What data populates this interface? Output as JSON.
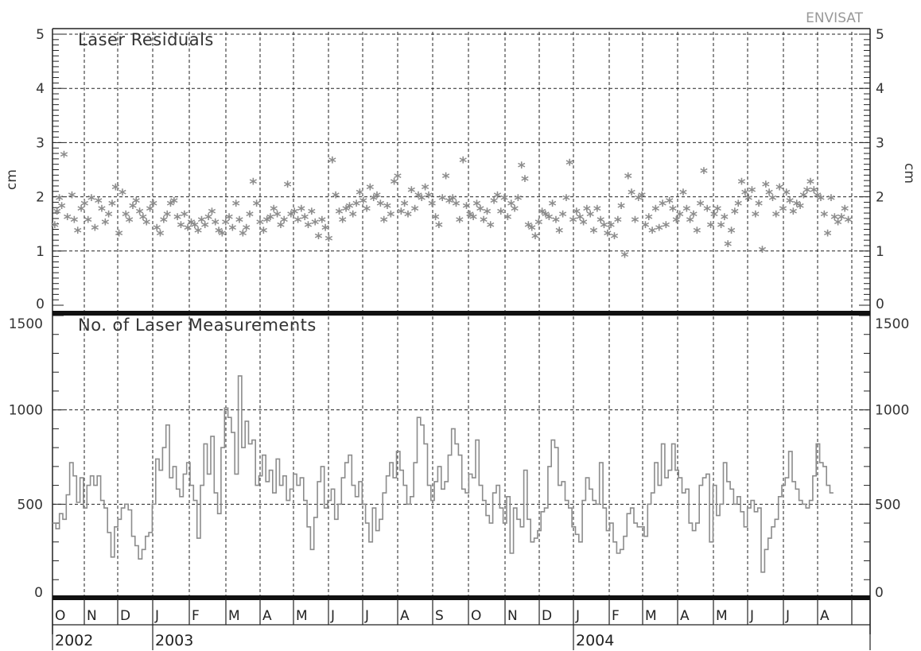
{
  "satellite_label": "ENVISAT",
  "chart_data": [
    {
      "type": "scatter",
      "title": "Laser Residuals",
      "ylabel": "cm",
      "ylim": [
        0,
        5
      ],
      "yticks": [
        "0",
        "1",
        "2",
        "3",
        "4",
        "5"
      ],
      "marker": "asterisk",
      "color": "#8c8c8c",
      "grid": true,
      "x_range_days": [
        0,
        713
      ],
      "points": [
        [
          2,
          1.45
        ],
        [
          4,
          1.7
        ],
        [
          6,
          1.95
        ],
        [
          8,
          1.8
        ],
        [
          10,
          2.75
        ],
        [
          13,
          1.6
        ],
        [
          17,
          2.0
        ],
        [
          19,
          1.55
        ],
        [
          22,
          1.35
        ],
        [
          25,
          1.75
        ],
        [
          28,
          1.85
        ],
        [
          31,
          1.55
        ],
        [
          34,
          1.95
        ],
        [
          37,
          1.4
        ],
        [
          40,
          1.9
        ],
        [
          43,
          1.75
        ],
        [
          46,
          1.5
        ],
        [
          49,
          1.65
        ],
        [
          52,
          1.85
        ],
        [
          55,
          2.15
        ],
        [
          58,
          1.3
        ],
        [
          61,
          2.05
        ],
        [
          64,
          1.65
        ],
        [
          67,
          1.55
        ],
        [
          70,
          1.8
        ],
        [
          73,
          1.9
        ],
        [
          76,
          1.7
        ],
        [
          79,
          1.6
        ],
        [
          82,
          1.5
        ],
        [
          85,
          1.75
        ],
        [
          88,
          1.85
        ],
        [
          91,
          1.4
        ],
        [
          94,
          1.3
        ],
        [
          97,
          1.55
        ],
        [
          100,
          1.65
        ],
        [
          103,
          1.85
        ],
        [
          106,
          1.9
        ],
        [
          109,
          1.6
        ],
        [
          112,
          1.45
        ],
        [
          115,
          1.65
        ],
        [
          118,
          1.4
        ],
        [
          121,
          1.5
        ],
        [
          124,
          1.45
        ],
        [
          127,
          1.35
        ],
        [
          130,
          1.55
        ],
        [
          133,
          1.45
        ],
        [
          136,
          1.6
        ],
        [
          139,
          1.7
        ],
        [
          142,
          1.5
        ],
        [
          145,
          1.35
        ],
        [
          148,
          1.3
        ],
        [
          151,
          1.5
        ],
        [
          154,
          1.6
        ],
        [
          157,
          1.4
        ],
        [
          160,
          1.85
        ],
        [
          163,
          1.55
        ],
        [
          166,
          1.3
        ],
        [
          169,
          1.4
        ],
        [
          172,
          1.65
        ],
        [
          175,
          2.25
        ],
        [
          178,
          1.85
        ],
        [
          181,
          1.5
        ],
        [
          184,
          1.35
        ],
        [
          187,
          1.55
        ],
        [
          190,
          1.6
        ],
        [
          193,
          1.75
        ],
        [
          196,
          1.65
        ],
        [
          199,
          1.45
        ],
        [
          202,
          1.55
        ],
        [
          205,
          2.2
        ],
        [
          208,
          1.65
        ],
        [
          211,
          1.7
        ],
        [
          214,
          1.55
        ],
        [
          217,
          1.75
        ],
        [
          220,
          1.6
        ],
        [
          223,
          1.45
        ],
        [
          226,
          1.7
        ],
        [
          229,
          1.5
        ],
        [
          232,
          1.25
        ],
        [
          235,
          1.55
        ],
        [
          238,
          1.4
        ],
        [
          241,
          1.2
        ],
        [
          244,
          2.65
        ],
        [
          247,
          2.0
        ],
        [
          250,
          1.7
        ],
        [
          253,
          1.55
        ],
        [
          256,
          1.75
        ],
        [
          259,
          1.8
        ],
        [
          262,
          1.65
        ],
        [
          265,
          1.85
        ],
        [
          268,
          2.05
        ],
        [
          271,
          1.9
        ],
        [
          274,
          1.75
        ],
        [
          277,
          2.15
        ],
        [
          280,
          1.95
        ],
        [
          283,
          2.0
        ],
        [
          286,
          1.85
        ],
        [
          289,
          1.55
        ],
        [
          292,
          1.8
        ],
        [
          295,
          1.65
        ],
        [
          298,
          2.25
        ],
        [
          301,
          2.35
        ],
        [
          304,
          1.7
        ],
        [
          307,
          1.85
        ],
        [
          310,
          1.65
        ],
        [
          313,
          2.1
        ],
        [
          316,
          1.75
        ],
        [
          319,
          2.0
        ],
        [
          322,
          1.95
        ],
        [
          325,
          2.15
        ],
        [
          328,
          2.0
        ],
        [
          331,
          1.85
        ],
        [
          334,
          1.6
        ],
        [
          337,
          1.45
        ],
        [
          340,
          1.95
        ],
        [
          343,
          2.35
        ],
        [
          346,
          1.9
        ],
        [
          349,
          1.95
        ],
        [
          352,
          1.85
        ],
        [
          355,
          1.55
        ],
        [
          358,
          2.65
        ],
        [
          361,
          1.8
        ],
        [
          364,
          1.65
        ],
        [
          367,
          1.6
        ],
        [
          370,
          1.85
        ],
        [
          373,
          1.75
        ],
        [
          376,
          1.55
        ],
        [
          379,
          1.7
        ],
        [
          382,
          1.45
        ],
        [
          385,
          1.9
        ],
        [
          388,
          2.0
        ],
        [
          391,
          1.7
        ],
        [
          394,
          1.95
        ],
        [
          397,
          1.6
        ],
        [
          400,
          1.85
        ],
        [
          403,
          1.75
        ],
        [
          406,
          1.95
        ],
        [
          409,
          2.55
        ],
        [
          412,
          2.3
        ],
        [
          415,
          1.45
        ],
        [
          418,
          1.4
        ],
        [
          421,
          1.25
        ],
        [
          424,
          1.5
        ],
        [
          427,
          1.7
        ],
        [
          430,
          1.65
        ],
        [
          433,
          1.6
        ],
        [
          436,
          1.85
        ],
        [
          439,
          1.55
        ],
        [
          442,
          1.35
        ],
        [
          445,
          1.65
        ],
        [
          448,
          1.95
        ],
        [
          451,
          2.6
        ],
        [
          454,
          1.55
        ],
        [
          457,
          1.7
        ],
        [
          460,
          1.6
        ],
        [
          463,
          1.5
        ],
        [
          466,
          1.75
        ],
        [
          469,
          1.65
        ],
        [
          472,
          1.35
        ],
        [
          475,
          1.75
        ],
        [
          478,
          1.55
        ],
        [
          481,
          1.45
        ],
        [
          484,
          1.3
        ],
        [
          487,
          1.45
        ],
        [
          490,
          1.25
        ],
        [
          493,
          1.55
        ],
        [
          496,
          1.8
        ],
        [
          499,
          0.9
        ],
        [
          502,
          2.35
        ],
        [
          505,
          2.05
        ],
        [
          508,
          1.55
        ],
        [
          511,
          1.95
        ],
        [
          514,
          2.0
        ],
        [
          517,
          1.45
        ],
        [
          520,
          1.6
        ],
        [
          523,
          1.35
        ],
        [
          526,
          1.75
        ],
        [
          529,
          1.4
        ],
        [
          532,
          1.85
        ],
        [
          535,
          1.45
        ],
        [
          538,
          1.9
        ],
        [
          541,
          1.75
        ],
        [
          544,
          1.55
        ],
        [
          547,
          1.65
        ],
        [
          550,
          2.05
        ],
        [
          553,
          1.75
        ],
        [
          556,
          1.55
        ],
        [
          559,
          1.65
        ],
        [
          562,
          1.35
        ],
        [
          565,
          1.85
        ],
        [
          568,
          2.45
        ],
        [
          571,
          1.75
        ],
        [
          574,
          1.45
        ],
        [
          577,
          1.65
        ],
        [
          580,
          1.75
        ],
        [
          583,
          1.45
        ],
        [
          586,
          1.6
        ],
        [
          589,
          1.1
        ],
        [
          592,
          1.35
        ],
        [
          595,
          1.7
        ],
        [
          598,
          1.85
        ],
        [
          601,
          2.25
        ],
        [
          604,
          2.05
        ],
        [
          607,
          1.95
        ],
        [
          610,
          2.1
        ],
        [
          613,
          1.65
        ],
        [
          616,
          1.85
        ],
        [
          619,
          1.0
        ],
        [
          622,
          2.2
        ],
        [
          625,
          2.05
        ],
        [
          628,
          1.95
        ],
        [
          631,
          1.65
        ],
        [
          634,
          2.15
        ],
        [
          637,
          1.75
        ],
        [
          640,
          2.05
        ],
        [
          643,
          1.9
        ],
        [
          646,
          1.7
        ],
        [
          649,
          1.85
        ],
        [
          652,
          1.8
        ],
        [
          655,
          2.0
        ],
        [
          658,
          2.1
        ],
        [
          661,
          2.25
        ],
        [
          664,
          2.1
        ],
        [
          667,
          2.0
        ],
        [
          670,
          1.95
        ],
        [
          673,
          1.65
        ],
        [
          676,
          1.3
        ],
        [
          679,
          1.95
        ],
        [
          682,
          1.6
        ],
        [
          685,
          1.5
        ],
        [
          688,
          1.6
        ],
        [
          691,
          1.75
        ],
        [
          694,
          1.55
        ]
      ]
    },
    {
      "type": "line",
      "step": true,
      "title": "No. of Laser Measurements",
      "ylabel": "",
      "ylim": [
        0,
        1500
      ],
      "yticks": [
        "0",
        "500",
        "1000",
        "1500"
      ],
      "color": "#8c8c8c",
      "grid": true,
      "x_range_days": [
        0,
        713
      ],
      "step_days": 3,
      "values": [
        400,
        370,
        450,
        420,
        550,
        720,
        650,
        510,
        640,
        480,
        600,
        650,
        600,
        650,
        520,
        480,
        350,
        220,
        380,
        420,
        480,
        500,
        470,
        330,
        280,
        210,
        260,
        330,
        350,
        500,
        740,
        680,
        800,
        920,
        640,
        700,
        580,
        540,
        660,
        720,
        600,
        520,
        320,
        600,
        820,
        660,
        860,
        560,
        450,
        800,
        1010,
        960,
        880,
        660,
        1180,
        800,
        940,
        820,
        840,
        600,
        650,
        760,
        620,
        680,
        560,
        740,
        600,
        650,
        520,
        580,
        660,
        600,
        640,
        520,
        380,
        260,
        430,
        620,
        700,
        480,
        520,
        580,
        420,
        500,
        640,
        720,
        760,
        600,
        540,
        620,
        500,
        400,
        300,
        480,
        360,
        420,
        560,
        650,
        720,
        640,
        780,
        680,
        600,
        500,
        540,
        720,
        960,
        920,
        820,
        600,
        520,
        620,
        700,
        580,
        620,
        760,
        900,
        820,
        760,
        580,
        560,
        660,
        640,
        840,
        600,
        520,
        440,
        400,
        560,
        600,
        480,
        400,
        540,
        240,
        480,
        420,
        380,
        680,
        420,
        300,
        320,
        360,
        460,
        480,
        700,
        840,
        800,
        600,
        620,
        520,
        480,
        380,
        340,
        300,
        520,
        640,
        580,
        520,
        500,
        720,
        480,
        360,
        400,
        300,
        240,
        260,
        330,
        450,
        480,
        400,
        380,
        380,
        330,
        500,
        560,
        720,
        600,
        820,
        640,
        680,
        820,
        680,
        640,
        560,
        580,
        400,
        360,
        400,
        600,
        640,
        660,
        300,
        600,
        440,
        500,
        720,
        620,
        580,
        500,
        540,
        460,
        380,
        480,
        520,
        460,
        480,
        140,
        260,
        320,
        380,
        420,
        540,
        600,
        640,
        780,
        620,
        580,
        520,
        500,
        480,
        520,
        650,
        820,
        720,
        700,
        600,
        560
      ]
    }
  ],
  "x_axis": {
    "months": [
      "O",
      "N",
      "D",
      "J",
      "F",
      "M",
      "A",
      "M",
      "J",
      "J",
      "A",
      "S",
      "O",
      "N",
      "D",
      "J",
      "F",
      "M",
      "A",
      "M",
      "J",
      "J",
      "A"
    ],
    "years": [
      "2002",
      "2003",
      "2004"
    ]
  }
}
